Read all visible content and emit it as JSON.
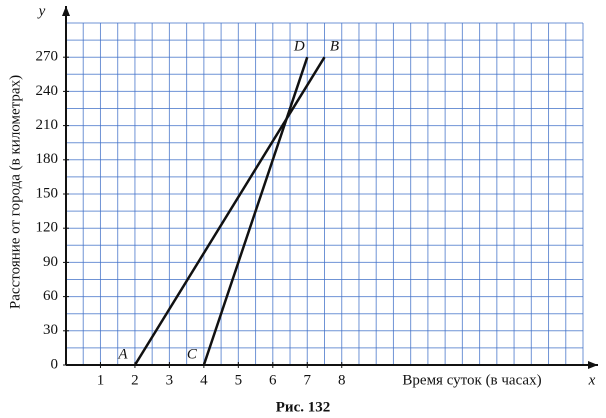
{
  "chart_data": {
    "type": "line",
    "x_label": "Время суток (в часах)",
    "y_label": "Расстояние от города (в километрах)",
    "x_axis_name": "x",
    "y_axis_name": "y",
    "caption": "Рис. 132",
    "series": [
      {
        "x": [
          2,
          7.5
        ],
        "values": [
          0,
          270
        ],
        "point_labels": [
          "A",
          "B"
        ],
        "color": "#111111"
      },
      {
        "x": [
          4,
          7
        ],
        "values": [
          0,
          270
        ],
        "point_labels": [
          "C",
          "D"
        ],
        "color": "#111111"
      }
    ],
    "xlim": [
      0,
      15
    ],
    "ylim": [
      0,
      300
    ],
    "xticks": [
      1,
      2,
      3,
      4,
      5,
      6,
      7,
      8
    ],
    "yticks": [
      0,
      30,
      60,
      90,
      120,
      150,
      180,
      210,
      240,
      270
    ],
    "grid": true,
    "grid_x_step": 0.5,
    "grid_y_step": 15
  }
}
